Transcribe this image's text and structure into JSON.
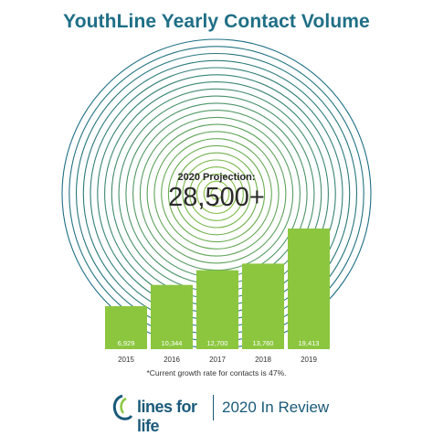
{
  "chart_data": {
    "type": "bar",
    "title": "YouthLine Yearly Contact Volume",
    "categories": [
      "2015",
      "2016",
      "2017",
      "2018",
      "2019"
    ],
    "values": [
      6929,
      10344,
      12700,
      13760,
      19413
    ],
    "value_labels": [
      "6,929",
      "10,344",
      "12,700",
      "13,760",
      "19,413"
    ],
    "ylim": [
      0,
      19413
    ],
    "xlabel": "",
    "ylabel": "",
    "grid": false,
    "bar_color": "#8cc63f",
    "projection": {
      "label": "2020 Projection:",
      "value": "28,500+"
    },
    "footnote": "*Current growth rate for contacts is 47%."
  },
  "colors": {
    "title": "#1f6f86",
    "ring_start": "#1e6f86",
    "ring_end": "#8cc63f",
    "brand": "#1a5a7a"
  },
  "footer": {
    "logo_text": "lines for life",
    "review_text": "2020 In Review"
  }
}
